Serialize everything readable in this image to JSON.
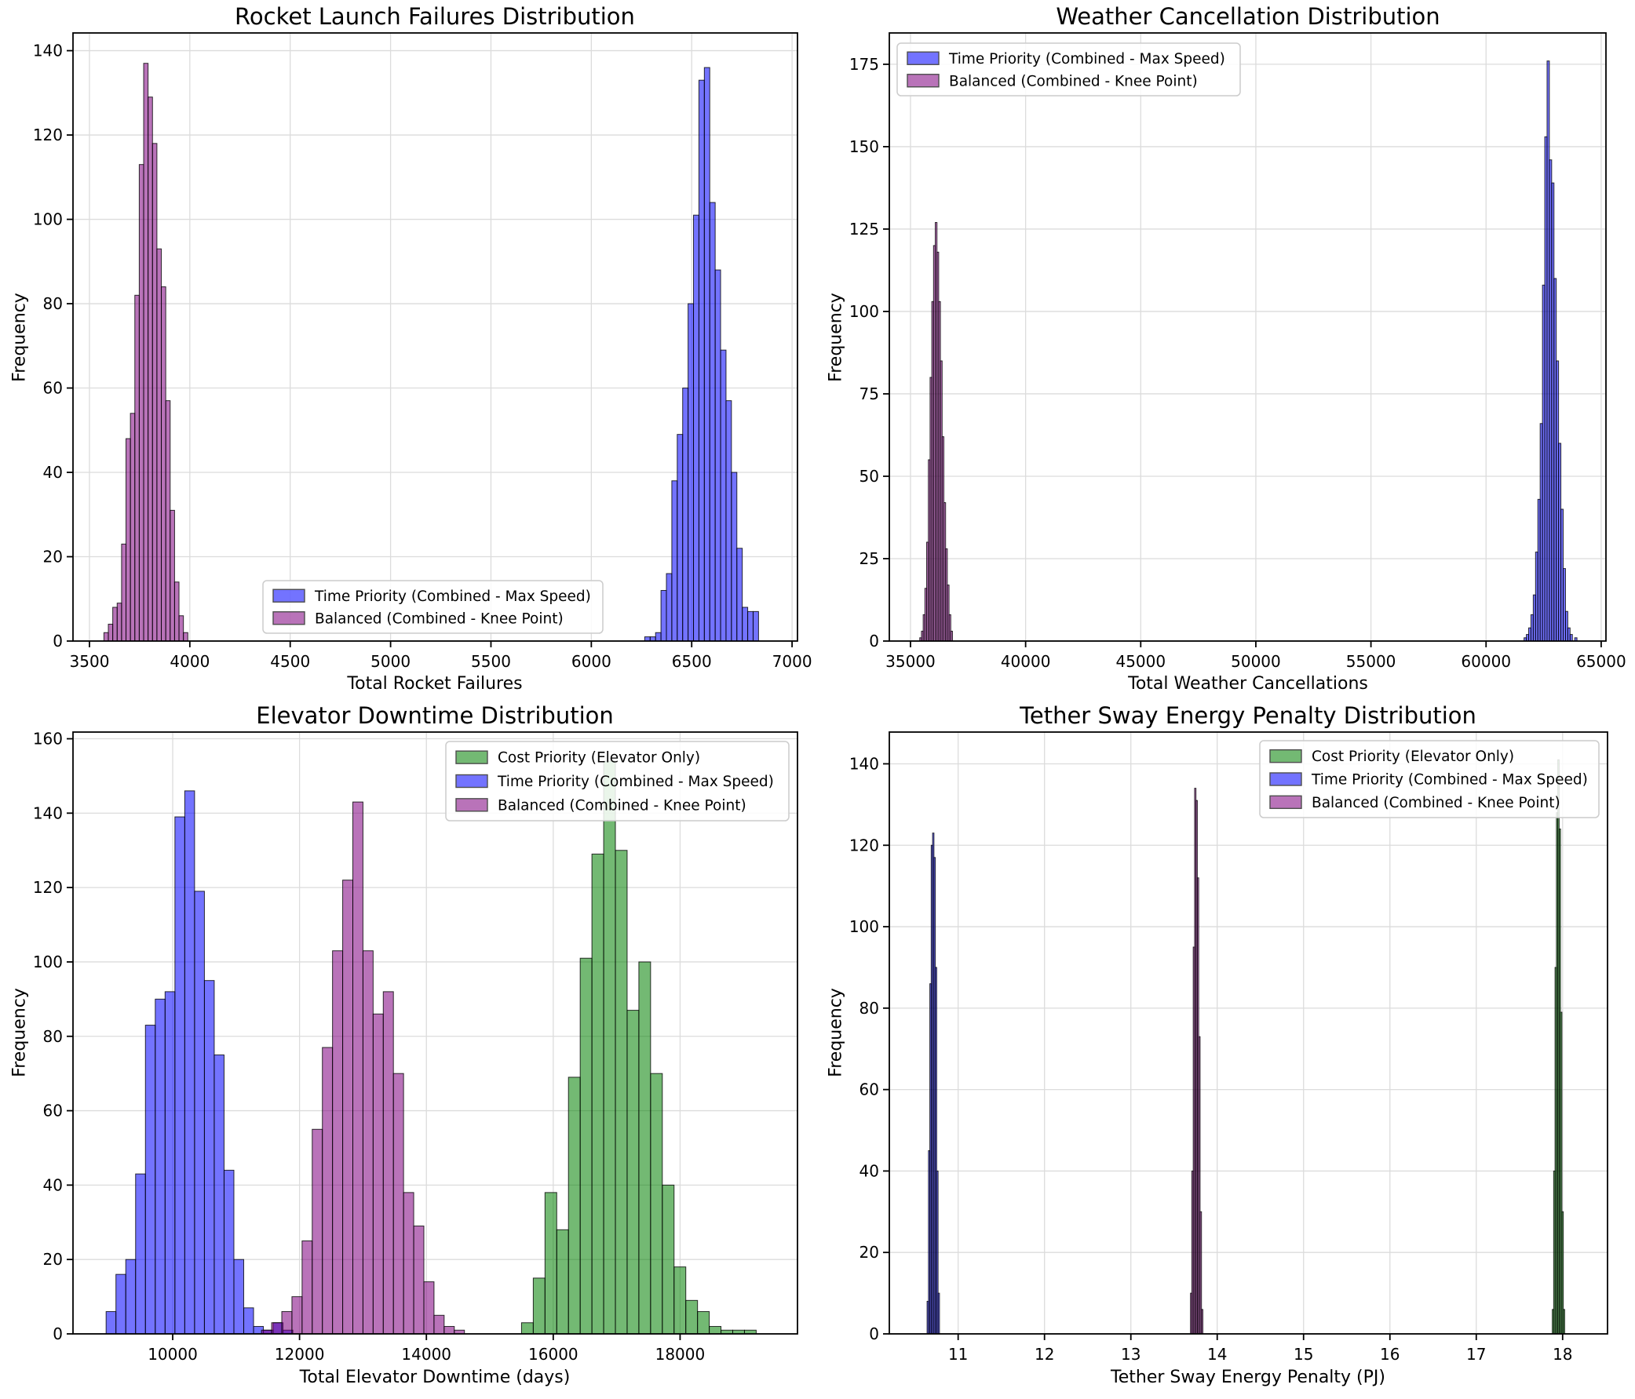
{
  "figure": {
    "background": "#ffffff",
    "grid_color": "#dcdcdc",
    "spine_color": "#000000",
    "text_color": "#000000",
    "legend_bg": "rgba(255,255,255,0.85)",
    "legend_border": "#cccccc",
    "bar_alpha": 0.55,
    "colors": {
      "blue": "#0000ff",
      "purple": "#800080",
      "green": "#008000"
    }
  },
  "chart_data": [
    {
      "type": "histogram",
      "title": "Rocket Launch Failures Distribution",
      "xlabel": "Total Rocket Failures",
      "ylabel": "Frequency",
      "xlim": [
        3418,
        7027
      ],
      "ylim": [
        0,
        144.2
      ],
      "xticks": [
        3500,
        4000,
        4500,
        5000,
        5500,
        6000,
        6500,
        7000
      ],
      "yticks": [
        0,
        20,
        40,
        60,
        80,
        100,
        120,
        140
      ],
      "series": [
        {
          "name": "Time Priority (Combined - Max Speed)",
          "color": "blue",
          "bin_start": 6266,
          "bin_width": 27,
          "counts": [
            1,
            1,
            2,
            12,
            16,
            38,
            49,
            60,
            80,
            101,
            133,
            136,
            104,
            88,
            69,
            57,
            40,
            22,
            8,
            7,
            7
          ]
        },
        {
          "name": "Balanced (Combined - Knee Point)",
          "color": "purple",
          "bin_start": 3572,
          "bin_width": 22,
          "counts": [
            2,
            4,
            8,
            9,
            23,
            48,
            54,
            82,
            113,
            137,
            129,
            118,
            93,
            84,
            57,
            31,
            14,
            6,
            2
          ]
        }
      ],
      "legend": {
        "entries": [
          {
            "label": "Time Priority (Combined - Max Speed)",
            "series": 0
          },
          {
            "label": "Balanced (Combined - Knee Point)",
            "series": 1
          }
        ]
      }
    },
    {
      "type": "histogram",
      "title": "Weather Cancellation Distribution",
      "xlabel": "Total Weather Cancellations",
      "ylabel": "Frequency",
      "xlim": [
        34080,
        65208
      ],
      "ylim": [
        0,
        184.5
      ],
      "xticks": [
        35000,
        40000,
        45000,
        50000,
        55000,
        60000,
        65000
      ],
      "yticks": [
        0,
        25,
        50,
        75,
        100,
        125,
        150,
        175
      ],
      "series": [
        {
          "name": "Time Priority (Combined - Max Speed)",
          "color": "blue",
          "bin_start": 61650,
          "bin_width": 100,
          "counts": [
            1,
            2,
            4,
            8,
            14,
            27,
            43,
            66,
            108,
            153,
            176,
            146,
            139,
            110,
            85,
            60,
            40,
            22,
            9,
            4,
            2,
            0,
            1
          ]
        },
        {
          "name": "Balanced (Combined - Knee Point)",
          "color": "purple",
          "bin_start": 35400,
          "bin_width": 75,
          "counts": [
            1,
            3,
            8,
            16,
            30,
            55,
            80,
            103,
            120,
            127,
            118,
            103,
            85,
            62,
            42,
            28,
            17,
            8,
            3
          ]
        }
      ],
      "legend": {
        "entries": [
          {
            "label": "Time Priority (Combined - Max Speed)",
            "series": 0
          },
          {
            "label": "Balanced (Combined - Knee Point)",
            "series": 1
          }
        ]
      }
    },
    {
      "type": "histogram",
      "title": "Elevator Downtime Distribution",
      "xlabel": "Total Elevator Downtime (days)",
      "ylabel": "Frequency",
      "xlim": [
        8428,
        19851
      ],
      "ylim": [
        0,
        161.8
      ],
      "xticks": [
        10000,
        12000,
        14000,
        16000,
        18000
      ],
      "yticks": [
        0,
        20,
        40,
        60,
        80,
        100,
        120,
        140,
        160
      ],
      "series": [
        {
          "name": "Cost Priority (Elevator Only)",
          "color": "green",
          "bin_start": 15500,
          "bin_width": 185,
          "counts": [
            3,
            15,
            38,
            28,
            69,
            101,
            129,
            154,
            130,
            87,
            100,
            70,
            40,
            18,
            9,
            6,
            2,
            1,
            1,
            1
          ]
        },
        {
          "name": "Time Priority (Combined - Max Speed)",
          "color": "blue",
          "bin_start": 8950,
          "bin_width": 155,
          "counts": [
            6,
            16,
            20,
            43,
            83,
            90,
            92,
            139,
            146,
            119,
            95,
            75,
            44,
            20,
            7,
            2,
            1,
            3,
            1
          ]
        },
        {
          "name": "Balanced (Combined - Knee Point)",
          "color": "purple",
          "bin_start": 11400,
          "bin_width": 160,
          "counts": [
            1,
            3,
            6,
            10,
            25,
            55,
            77,
            103,
            122,
            143,
            103,
            86,
            92,
            70,
            38,
            29,
            14,
            5,
            2,
            1
          ]
        }
      ],
      "legend": {
        "entries": [
          {
            "label": "Cost Priority (Elevator Only)",
            "series": 0
          },
          {
            "label": "Time Priority (Combined - Max Speed)",
            "series": 1
          },
          {
            "label": "Balanced (Combined - Knee Point)",
            "series": 2
          }
        ]
      }
    },
    {
      "type": "histogram",
      "title": "Tether Sway Energy Penalty Distribution",
      "xlabel": "Tether Sway Energy Penalty (PJ)",
      "ylabel": "Frequency",
      "xlim": [
        10.203,
        18.52
      ],
      "ylim": [
        0,
        147.8
      ],
      "xticks": [
        11,
        12,
        13,
        14,
        15,
        16,
        17,
        18
      ],
      "yticks": [
        0,
        20,
        40,
        60,
        80,
        100,
        120,
        140
      ],
      "series": [
        {
          "name": "Cost Priority (Elevator Only)",
          "color": "green",
          "bin_start": 17.88,
          "bin_width": 0.016,
          "counts": [
            6,
            40,
            90,
            128,
            141,
            124,
            79,
            30,
            6
          ]
        },
        {
          "name": "Time Priority (Combined - Max Speed)",
          "color": "blue",
          "bin_start": 10.64,
          "bin_width": 0.016,
          "counts": [
            8,
            45,
            86,
            120,
            123,
            117,
            90,
            40,
            10
          ]
        },
        {
          "name": "Balanced (Combined - Knee Point)",
          "color": "purple",
          "bin_start": 13.69,
          "bin_width": 0.016,
          "counts": [
            10,
            40,
            95,
            134,
            131,
            112,
            73,
            30,
            6
          ]
        }
      ],
      "legend": {
        "entries": [
          {
            "label": "Cost Priority (Elevator Only)",
            "series": 0
          },
          {
            "label": "Time Priority (Combined - Max Speed)",
            "series": 1
          },
          {
            "label": "Balanced (Combined - Knee Point)",
            "series": 2
          }
        ]
      }
    }
  ]
}
